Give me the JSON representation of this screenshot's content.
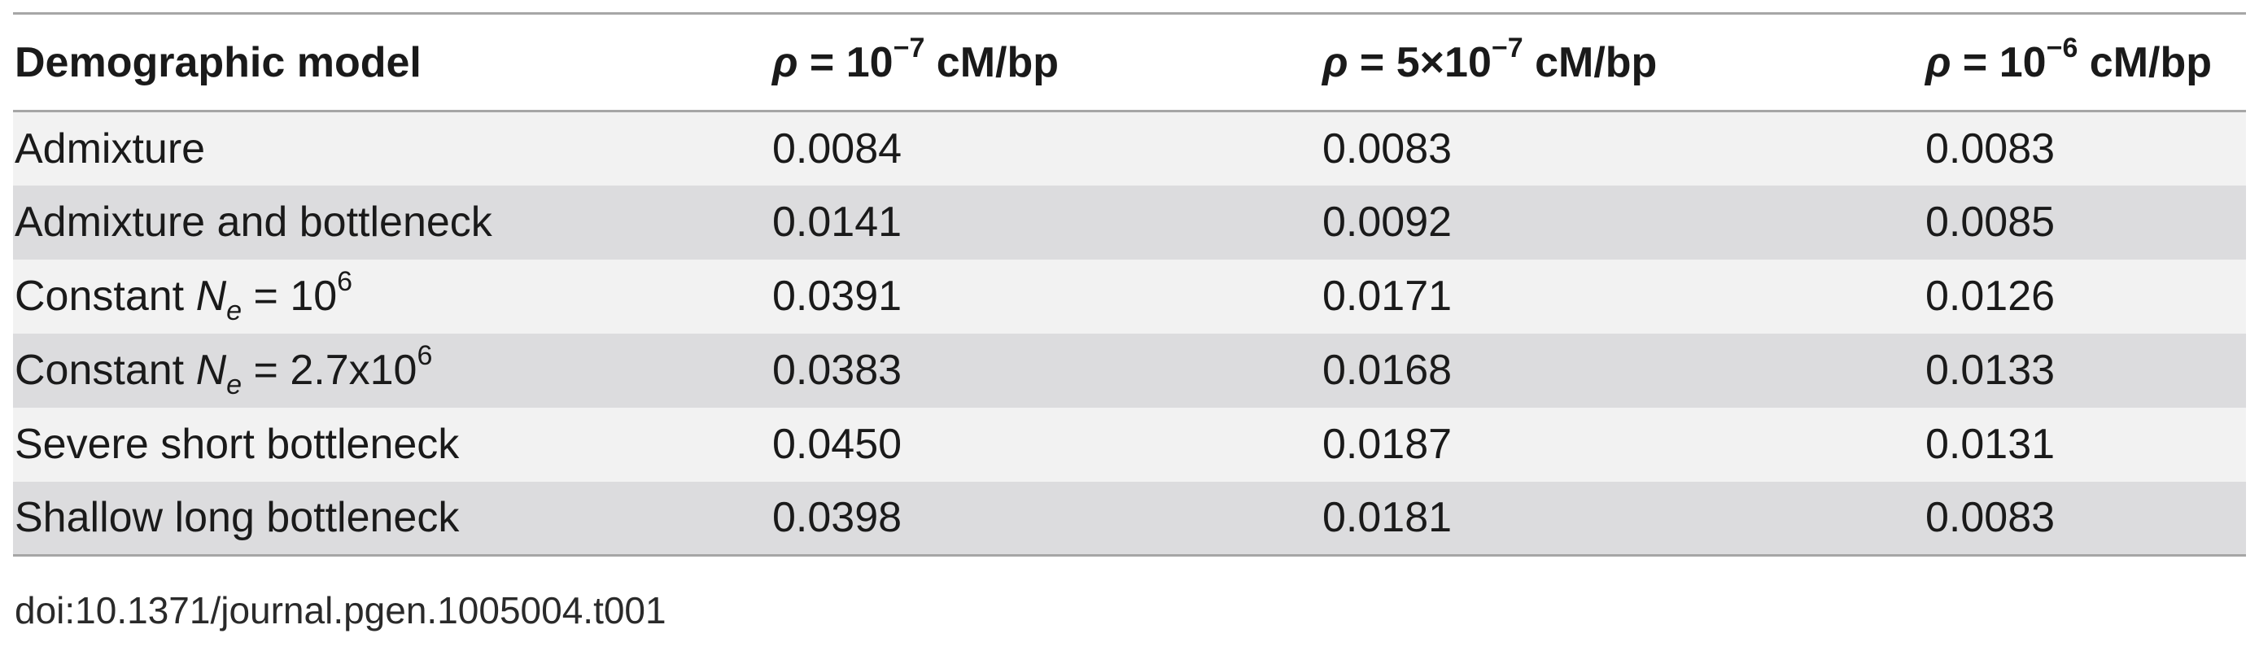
{
  "table": {
    "headers": [
      {
        "label": "Demographic model"
      },
      {
        "symbol": "ρ",
        "prefix": " = 10",
        "exponent": "−7",
        "unit": " cM/bp"
      },
      {
        "symbol": "ρ",
        "prefix": " = 5×10",
        "exponent": "−7",
        "unit": " cM/bp"
      },
      {
        "symbol": "ρ",
        "prefix": " = 10",
        "exponent": "−6",
        "unit": " cM/bp"
      }
    ],
    "rows": [
      {
        "model": "Admixture",
        "values": [
          "0.0084",
          "0.0083",
          "0.0083"
        ]
      },
      {
        "model": "Admixture and bottleneck",
        "values": [
          "0.0141",
          "0.0092",
          "0.0085"
        ]
      },
      {
        "model_prefix": "Constant ",
        "model_var": "N",
        "model_sub": "e",
        "model_mid": " = 10",
        "model_sup": "6",
        "values": [
          "0.0391",
          "0.0171",
          "0.0126"
        ]
      },
      {
        "model_prefix": "Constant ",
        "model_var": "N",
        "model_sub": "e",
        "model_mid": " = 2.7x10",
        "model_sup": "6",
        "values": [
          "0.0383",
          "0.0168",
          "0.0133"
        ]
      },
      {
        "model": "Severe short bottleneck",
        "values": [
          "0.0450",
          "0.0187",
          "0.0131"
        ]
      },
      {
        "model": "Shallow long bottleneck",
        "values": [
          "0.0398",
          "0.0181",
          "0.0083"
        ]
      }
    ]
  },
  "footer": {
    "doi": "doi:10.1371/journal.pgen.1005004.t001"
  }
}
